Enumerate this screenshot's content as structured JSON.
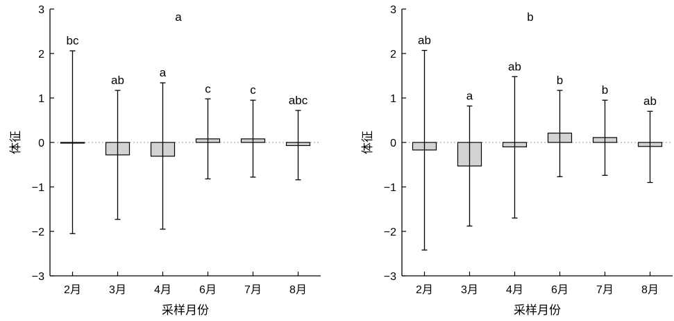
{
  "chart_data": [
    {
      "type": "bar",
      "title": "a",
      "xlabel": "采样月份",
      "ylabel": "体征",
      "ylim": [
        -3,
        3
      ],
      "yticks": [
        {
          "value": 3,
          "label": "3"
        },
        {
          "value": 2,
          "label": "2"
        },
        {
          "value": 1,
          "label": "1"
        },
        {
          "value": 0,
          "label": "0"
        },
        {
          "value": -1,
          "label": "−1"
        },
        {
          "value": -2,
          "label": "−2"
        },
        {
          "value": -3,
          "label": "−3"
        }
      ],
      "categories": [
        "2月",
        "3月",
        "4月",
        "6月",
        "7月",
        "8月"
      ],
      "values": [
        0.0,
        -0.28,
        -0.31,
        0.08,
        0.08,
        -0.07
      ],
      "error_upper": [
        2.06,
        1.17,
        1.34,
        0.98,
        0.95,
        0.72
      ],
      "error_lower": [
        -2.05,
        -1.73,
        -1.95,
        -0.82,
        -0.78,
        -0.84
      ],
      "significance": [
        "bc",
        "ab",
        "a",
        "c",
        "c",
        "abc"
      ],
      "zero_line": "dotted",
      "bar_color": "#d3d3d3"
    },
    {
      "type": "bar",
      "title": "b",
      "xlabel": "采样月份",
      "ylabel": "体征",
      "ylim": [
        -3,
        3
      ],
      "yticks": [
        {
          "value": 3,
          "label": "3"
        },
        {
          "value": 2,
          "label": "2"
        },
        {
          "value": 1,
          "label": "1"
        },
        {
          "value": 0,
          "label": "0"
        },
        {
          "value": -1,
          "label": "−1"
        },
        {
          "value": -2,
          "label": "−2"
        },
        {
          "value": -3,
          "label": "−3"
        }
      ],
      "categories": [
        "2月",
        "3月",
        "4月",
        "6月",
        "7月",
        "8月"
      ],
      "values": [
        -0.17,
        -0.53,
        -0.1,
        0.21,
        0.11,
        -0.09
      ],
      "error_upper": [
        2.07,
        0.82,
        1.48,
        1.17,
        0.95,
        0.7
      ],
      "error_lower": [
        -2.42,
        -1.88,
        -1.7,
        -0.77,
        -0.74,
        -0.9
      ],
      "significance": [
        "ab",
        "a",
        "ab",
        "b",
        "b",
        "ab"
      ],
      "zero_line": "dotted",
      "bar_color": "#d3d3d3"
    }
  ]
}
